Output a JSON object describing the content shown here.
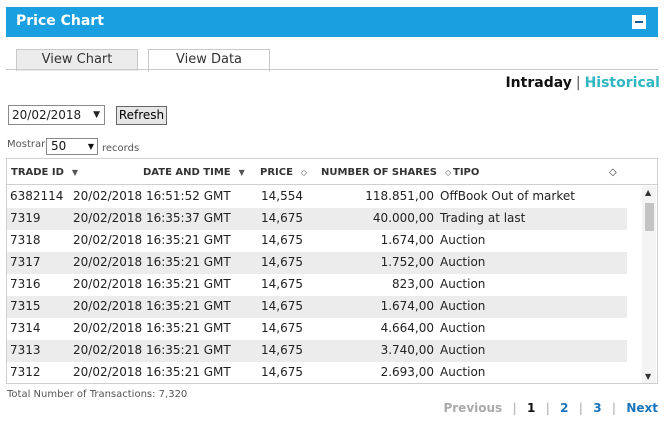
{
  "header": {
    "title": "Price Chart",
    "collapse_icon": "minus-box-icon",
    "color": "#1aa0e0"
  },
  "tabs": [
    {
      "label": "View Chart",
      "active": false
    },
    {
      "label": "View Data",
      "active": true
    }
  ],
  "period": {
    "intraday": "Intraday",
    "separator": "|",
    "historical": "Historical",
    "historical_color": "#2fb6c0"
  },
  "controls": {
    "date": "20/02/2018",
    "refresh_label": "Refresh",
    "show_label": "Mostrar",
    "records_value": "50",
    "records_label": "records"
  },
  "table": {
    "columns": [
      {
        "label": "TRADE ID",
        "sort": "▼"
      },
      {
        "label": "DATE AND TIME",
        "sort": "▼"
      },
      {
        "label": "PRICE",
        "sort": "◇"
      },
      {
        "label": "NUMBER OF SHARES",
        "sort": "◇"
      },
      {
        "label": "TIPO",
        "sort": "◇"
      }
    ],
    "rows": [
      {
        "id": "6382114",
        "datetime": "20/02/2018 16:51:52 GMT",
        "price": "14,554",
        "shares": "118.851,00",
        "tipo": "OffBook Out of market"
      },
      {
        "id": "7319",
        "datetime": "20/02/2018 16:35:37 GMT",
        "price": "14,675",
        "shares": "40.000,00",
        "tipo": "Trading at last"
      },
      {
        "id": "7318",
        "datetime": "20/02/2018 16:35:21 GMT",
        "price": "14,675",
        "shares": "1.674,00",
        "tipo": "Auction"
      },
      {
        "id": "7317",
        "datetime": "20/02/2018 16:35:21 GMT",
        "price": "14,675",
        "shares": "1.752,00",
        "tipo": "Auction"
      },
      {
        "id": "7316",
        "datetime": "20/02/2018 16:35:21 GMT",
        "price": "14,675",
        "shares": "823,00",
        "tipo": "Auction"
      },
      {
        "id": "7315",
        "datetime": "20/02/2018 16:35:21 GMT",
        "price": "14,675",
        "shares": "1.674,00",
        "tipo": "Auction"
      },
      {
        "id": "7314",
        "datetime": "20/02/2018 16:35:21 GMT",
        "price": "14,675",
        "shares": "4.664,00",
        "tipo": "Auction"
      },
      {
        "id": "7313",
        "datetime": "20/02/2018 16:35:21 GMT",
        "price": "14,675",
        "shares": "3.740,00",
        "tipo": "Auction"
      },
      {
        "id": "7312",
        "datetime": "20/02/2018 16:35:21 GMT",
        "price": "14,675",
        "shares": "2.693,00",
        "tipo": "Auction"
      }
    ]
  },
  "footer": {
    "total": "Total Number of Transactions: 7,320",
    "pager": {
      "previous": "Previous",
      "pages": [
        "1",
        "2",
        "3"
      ],
      "current": "1",
      "next": "Next"
    }
  }
}
